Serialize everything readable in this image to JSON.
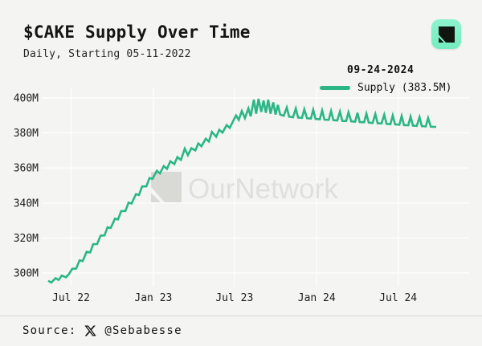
{
  "header": {
    "title": "$CAKE Supply Over Time",
    "subtitle": "Daily, Starting 05-11-2022"
  },
  "legend": {
    "date": "09-24-2024",
    "series_label": "Supply (383.5M)"
  },
  "watermark": {
    "text": "OurNetwork"
  },
  "source": {
    "prefix": "Source:",
    "handle": "@Sebabesse"
  },
  "colors": {
    "background": "#f4f4f2",
    "line_green": "#2ab687",
    "badge_green": "#7cefc5",
    "gridline": "#ffffff",
    "watermark_gray": "#dededb",
    "text_dark": "#161616"
  },
  "chart_data": {
    "type": "line",
    "title": "$CAKE Supply Over Time",
    "subtitle": "Daily, Starting 05-11-2022",
    "series_name": "Supply",
    "latest_date": "09-24-2024",
    "latest_value_m": 383.5,
    "x_start_date": "05-11-2022",
    "x_end_date": "09-24-2024",
    "xlabel": "",
    "ylabel": "",
    "grid": true,
    "legend_position": "top-right",
    "ylim_m": [
      292,
      405
    ],
    "y_ticks": [
      {
        "label": "300M",
        "value": 300
      },
      {
        "label": "320M",
        "value": 320
      },
      {
        "label": "340M",
        "value": 340
      },
      {
        "label": "360M",
        "value": 360
      },
      {
        "label": "380M",
        "value": 380
      },
      {
        "label": "400M",
        "value": 400
      }
    ],
    "x_ticks": [
      {
        "label": "Jul 22",
        "t": 0.059
      },
      {
        "label": "Jan 23",
        "t": 0.271
      },
      {
        "label": "Jul 23",
        "t": 0.48
      },
      {
        "label": "Jan 24",
        "t": 0.692
      },
      {
        "label": "Jul 24",
        "t": 0.902
      }
    ],
    "points_t": [
      0.0,
      0.008,
      0.019,
      0.027,
      0.035,
      0.046,
      0.054,
      0.062,
      0.072,
      0.081,
      0.089,
      0.099,
      0.108,
      0.116,
      0.126,
      0.135,
      0.145,
      0.153,
      0.161,
      0.172,
      0.18,
      0.188,
      0.199,
      0.207,
      0.215,
      0.226,
      0.234,
      0.242,
      0.253,
      0.261,
      0.269,
      0.28,
      0.288,
      0.298,
      0.306,
      0.315,
      0.325,
      0.333,
      0.342,
      0.352,
      0.36,
      0.369,
      0.379,
      0.387,
      0.395,
      0.406,
      0.414,
      0.422,
      0.433,
      0.441,
      0.449,
      0.46,
      0.468,
      0.476,
      0.484,
      0.491,
      0.499,
      0.507,
      0.516,
      0.522,
      0.53,
      0.536,
      0.542,
      0.549,
      0.555,
      0.561,
      0.567,
      0.573,
      0.58,
      0.586,
      0.592,
      0.598,
      0.607,
      0.615,
      0.621,
      0.631,
      0.638,
      0.644,
      0.654,
      0.66,
      0.667,
      0.677,
      0.683,
      0.689,
      0.7,
      0.706,
      0.712,
      0.723,
      0.729,
      0.735,
      0.745,
      0.752,
      0.758,
      0.768,
      0.774,
      0.781,
      0.791,
      0.797,
      0.803,
      0.814,
      0.82,
      0.826,
      0.836,
      0.843,
      0.849,
      0.859,
      0.866,
      0.872,
      0.882,
      0.888,
      0.894,
      0.905,
      0.911,
      0.917,
      0.928,
      0.934,
      0.94,
      0.95,
      0.957,
      0.963,
      0.973,
      0.979,
      0.986,
      0.994,
      1.0
    ],
    "points_supply_m": [
      295.5,
      294.5,
      297.0,
      296.0,
      298.5,
      297.5,
      299.5,
      302.4,
      302.5,
      307.2,
      306.8,
      312.1,
      311.7,
      316.4,
      316.5,
      321.3,
      321.4,
      326.1,
      325.7,
      331.0,
      330.6,
      335.3,
      335.4,
      340.2,
      339.7,
      345.0,
      344.6,
      349.4,
      349.5,
      354.2,
      353.8,
      358.4,
      356.9,
      361.1,
      359.5,
      363.8,
      362.2,
      366.2,
      364.6,
      371.0,
      367.3,
      371.3,
      370.0,
      374.0,
      372.4,
      376.7,
      375.1,
      380.6,
      377.8,
      381.8,
      380.2,
      384.5,
      382.9,
      386.5,
      390.0,
      387.5,
      392.5,
      388.5,
      394.0,
      389.5,
      399.0,
      391.0,
      399.5,
      392.0,
      398.5,
      391.5,
      399.0,
      391.0,
      397.5,
      390.5,
      396.0,
      390.5,
      389.8,
      394.5,
      389.3,
      389.0,
      394.0,
      388.8,
      388.6,
      393.5,
      388.4,
      388.2,
      393.2,
      388.0,
      387.8,
      392.8,
      387.6,
      387.5,
      392.5,
      387.3,
      387.1,
      392.2,
      386.9,
      386.8,
      391.8,
      386.6,
      386.4,
      391.5,
      386.2,
      386.1,
      391.0,
      385.9,
      385.7,
      390.8,
      385.5,
      385.4,
      390.4,
      385.2,
      385.0,
      390.0,
      384.9,
      384.7,
      389.7,
      384.5,
      384.4,
      389.3,
      384.2,
      384.0,
      389.0,
      383.9,
      383.7,
      388.5,
      383.6,
      383.5,
      383.5
    ]
  }
}
